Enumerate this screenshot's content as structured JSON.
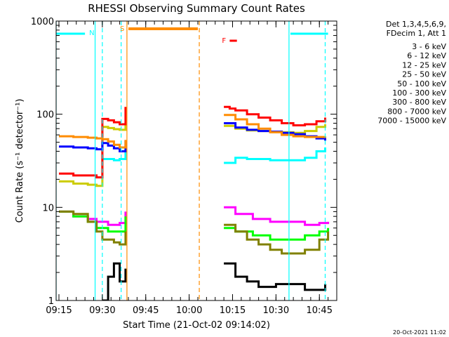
{
  "chart_data": {
    "type": "line",
    "title": "RHESSI Observing Summary Count Rates",
    "xlabel": "Start Time (21-Oct-02 09:14:02)",
    "ylabel": "Count Rate (s⁻¹ detector⁻¹)",
    "y_scale": "log",
    "ylim": [
      1,
      1000
    ],
    "xlim": [
      "09:14:02",
      "10:51:00"
    ],
    "x_ticks": [
      "09:15",
      "09:30",
      "09:45",
      "10:00",
      "10:15",
      "10:30",
      "10:45"
    ],
    "y_ticks": [
      "1",
      "10",
      "100",
      "1000"
    ],
    "x_minor_every_minutes": 3,
    "legend": {
      "placement": "right",
      "header": [
        "Det 1,3,4,5,6,9,",
        "FDecim 1, Att 1"
      ]
    },
    "series": [
      {
        "name": "3 - 6 keV",
        "color": "#000000",
        "x": [
          "09:30",
          "09:32",
          "09:34",
          "09:36",
          "09:38",
          "10:12",
          "10:16",
          "10:20",
          "10:24",
          "10:30",
          "10:40",
          "10:47"
        ],
        "values": [
          1.0,
          1.8,
          2.5,
          1.6,
          2.2,
          2.5,
          1.8,
          1.6,
          1.4,
          1.5,
          1.3,
          1.5
        ]
      },
      {
        "name": "6 - 12 keV",
        "color": "#ff00ff",
        "x": [
          "09:15",
          "09:20",
          "09:25",
          "09:28",
          "09:32",
          "09:36",
          "09:38",
          "10:12",
          "10:16",
          "10:22",
          "10:28",
          "10:35",
          "10:40",
          "10:45",
          "10:48"
        ],
        "values": [
          9.0,
          8.0,
          7.5,
          7.0,
          6.5,
          6.8,
          9.0,
          10.0,
          8.5,
          7.5,
          7.0,
          7.0,
          6.5,
          6.8,
          7.0
        ]
      },
      {
        "name": "12 - 25 keV",
        "color": "#00ff00",
        "x": [
          "09:15",
          "09:20",
          "09:25",
          "09:28",
          "09:32",
          "09:36",
          "09:38",
          "10:12",
          "10:16",
          "10:22",
          "10:28",
          "10:35",
          "10:40",
          "10:45",
          "10:48"
        ],
        "values": [
          9.0,
          8.0,
          7.0,
          6.0,
          5.5,
          5.5,
          8.0,
          6.0,
          5.5,
          5.0,
          4.5,
          4.5,
          5.0,
          5.5,
          6.0
        ]
      },
      {
        "name": "25 - 50 keV",
        "color": "#00ffff",
        "x": [
          "09:30",
          "09:32",
          "09:34",
          "09:36",
          "09:38",
          "10:12",
          "10:16",
          "10:20",
          "10:24",
          "10:28",
          "10:32",
          "10:36",
          "10:40",
          "10:44",
          "10:47"
        ],
        "values": [
          33,
          33,
          32,
          33,
          43,
          30,
          34,
          33,
          33,
          32,
          32,
          32,
          34,
          40,
          44
        ]
      },
      {
        "name": "50 - 100 keV",
        "color": "#cccc00",
        "x": [
          "09:15",
          "09:20",
          "09:25",
          "09:28",
          "09:30",
          "09:32",
          "09:34",
          "09:36",
          "09:38",
          "10:12",
          "10:16",
          "10:20",
          "10:24",
          "10:28",
          "10:32",
          "10:36",
          "10:40",
          "10:44",
          "10:47"
        ],
        "values": [
          19,
          18,
          17.5,
          17,
          73,
          71,
          69,
          68,
          78,
          75,
          70,
          67,
          66,
          65,
          64,
          63,
          66,
          73,
          78
        ]
      },
      {
        "name": "100 - 300 keV",
        "color": "#ff0000",
        "x": [
          "09:15",
          "09:20",
          "09:25",
          "09:28",
          "09:30",
          "09:32",
          "09:34",
          "09:36",
          "09:38",
          "10:12",
          "10:14",
          "10:16",
          "10:20",
          "10:24",
          "10:28",
          "10:32",
          "10:36",
          "10:40",
          "10:44",
          "10:47"
        ],
        "values": [
          23,
          22,
          22,
          21,
          89,
          86,
          82,
          78,
          120,
          120,
          115,
          110,
          100,
          92,
          86,
          80,
          76,
          78,
          84,
          92
        ]
      },
      {
        "name": "300 - 800 keV",
        "color": "#0000ff",
        "x": [
          "09:15",
          "09:20",
          "09:25",
          "09:28",
          "09:30",
          "09:32",
          "09:34",
          "09:36",
          "09:38",
          "10:12",
          "10:16",
          "10:20",
          "10:24",
          "10:28",
          "10:32",
          "10:36",
          "10:40",
          "10:44",
          "10:47"
        ],
        "values": [
          45,
          44,
          43,
          42,
          49,
          46,
          43,
          40,
          52,
          80,
          72,
          68,
          66,
          65,
          63,
          61,
          58,
          55,
          52
        ]
      },
      {
        "name": "800 - 7000 keV",
        "color": "#ff8c00",
        "x": [
          "09:15",
          "09:20",
          "09:25",
          "09:28",
          "09:30",
          "09:32",
          "09:34",
          "09:36",
          "09:38",
          "10:12",
          "10:16",
          "10:20",
          "10:24",
          "10:28",
          "10:32",
          "10:36",
          "10:40",
          "10:44",
          "10:47"
        ],
        "values": [
          58,
          57,
          56,
          55,
          54,
          51,
          47,
          44,
          53,
          98,
          88,
          78,
          70,
          64,
          60,
          58,
          57,
          57,
          58
        ]
      },
      {
        "name": "7000 - 15000 keV",
        "color": "#808000",
        "x": [
          "09:15",
          "09:20",
          "09:25",
          "09:28",
          "09:30",
          "09:32",
          "09:34",
          "09:36",
          "09:38",
          "10:12",
          "10:16",
          "10:20",
          "10:24",
          "10:28",
          "10:32",
          "10:36",
          "10:40",
          "10:45",
          "10:48"
        ],
        "values": [
          9.0,
          8.5,
          7.0,
          5.5,
          4.5,
          4.5,
          4.2,
          4.0,
          5.5,
          6.5,
          5.5,
          4.5,
          4.0,
          3.5,
          3.2,
          3.2,
          3.5,
          4.5,
          5.5
        ]
      }
    ],
    "annotations": {
      "night_bars": {
        "color": "#00ffff",
        "intervals": [
          [
            "09:14:02",
            "09:24:00"
          ],
          [
            "10:35:00",
            "10:48:00"
          ]
        ]
      },
      "night_label": "N",
      "saa_bar": {
        "color": "#ff8c00",
        "interval": [
          "09:39:00",
          "10:03:00"
        ]
      },
      "saa_label": "S",
      "flare_bar": {
        "color": "#ff0000",
        "interval": [
          "10:14:00",
          "10:16:30"
        ]
      },
      "flare_label": "F",
      "vertical_lines": [
        {
          "time": "09:14:02",
          "color": "#00ffff",
          "style": "solid"
        },
        {
          "time": "09:27:30",
          "color": "#00ffff",
          "style": "solid"
        },
        {
          "time": "09:30:00",
          "color": "#00ffff",
          "style": "dashed"
        },
        {
          "time": "09:36:30",
          "color": "#00ffff",
          "style": "dashed"
        },
        {
          "time": "09:38:30",
          "color": "#ff8c00",
          "style": "solid"
        },
        {
          "time": "10:03:30",
          "color": "#ff8c00",
          "style": "dashed"
        },
        {
          "time": "10:34:30",
          "color": "#00ffff",
          "style": "solid"
        },
        {
          "time": "10:47:00",
          "color": "#00ffff",
          "style": "dashed"
        }
      ]
    },
    "stamp": "20-Oct-2021 11:02"
  }
}
